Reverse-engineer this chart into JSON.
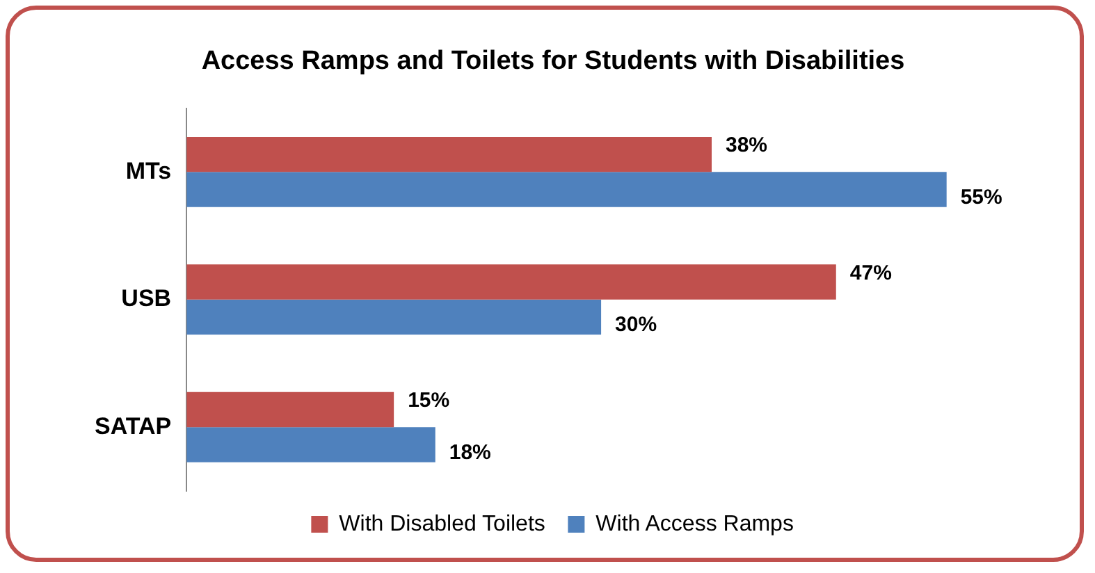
{
  "chart_data": {
    "type": "bar",
    "orientation": "horizontal",
    "title": "Access Ramps and Toilets for Students with Disabilities",
    "categories": [
      "MTs",
      "USB",
      "SATAP"
    ],
    "series": [
      {
        "name": "With Disabled Toilets",
        "color": "#c0504d",
        "values": [
          38,
          47,
          15
        ],
        "value_labels": [
          "38%",
          "47%",
          "15%"
        ]
      },
      {
        "name": "With Access Ramps",
        "color": "#4f81bd",
        "values": [
          55,
          30,
          18
        ],
        "value_labels": [
          "55%",
          "30%",
          "18%"
        ]
      }
    ],
    "grid": false,
    "legend": "bottom"
  }
}
